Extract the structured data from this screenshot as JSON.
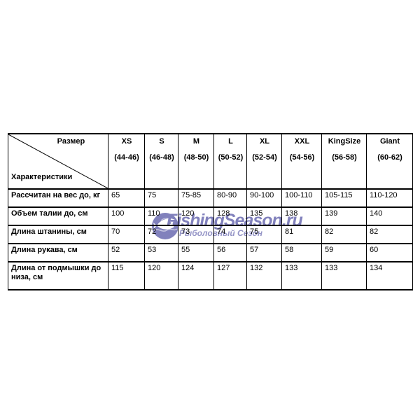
{
  "page": {
    "background": "#ffffff",
    "text_color": "#000000"
  },
  "watermark": {
    "brand": "FishingSeason.ru",
    "subtitle": "Рыболовный Сезон",
    "color": "#6f6fb3",
    "icon": "globe-fish-icon"
  },
  "chart_data": {
    "type": "table",
    "corner": {
      "columns_axis_label": "Размер",
      "rows_axis_label": "Характеристики"
    },
    "columns": [
      {
        "size": "XS",
        "range": "(44-46)"
      },
      {
        "size": "S",
        "range": "(46-48)"
      },
      {
        "size": "M",
        "range": "(48-50)"
      },
      {
        "size": "L",
        "range": "(50-52)"
      },
      {
        "size": "XL",
        "range": "(52-54)"
      },
      {
        "size": "XXL",
        "range": "(54-56)"
      },
      {
        "size": "KingSize",
        "range": "(56-58)"
      },
      {
        "size": "Giant",
        "range": "(60-62)"
      }
    ],
    "rows": [
      {
        "label": "Рассчитан на вес до, кг",
        "values": [
          "65",
          "75",
          "75-85",
          "80-90",
          "90-100",
          "100-110",
          "105-115",
          "110-120"
        ]
      },
      {
        "label": "Объем талии до, см",
        "values": [
          "100",
          "110",
          "120",
          "128",
          "135",
          "138",
          "139",
          "140"
        ]
      },
      {
        "label": "Длина штанины, см",
        "values": [
          "70",
          "72",
          "73",
          "74",
          "75",
          "81",
          "82",
          "82"
        ]
      },
      {
        "label": "Длина рукава, см",
        "values": [
          "52",
          "53",
          "55",
          "56",
          "57",
          "58",
          "59",
          "60"
        ]
      },
      {
        "label": "Длина от подмышки до низа, см",
        "values": [
          "115",
          "120",
          "124",
          "127",
          "132",
          "133",
          "133",
          "134"
        ]
      }
    ]
  }
}
